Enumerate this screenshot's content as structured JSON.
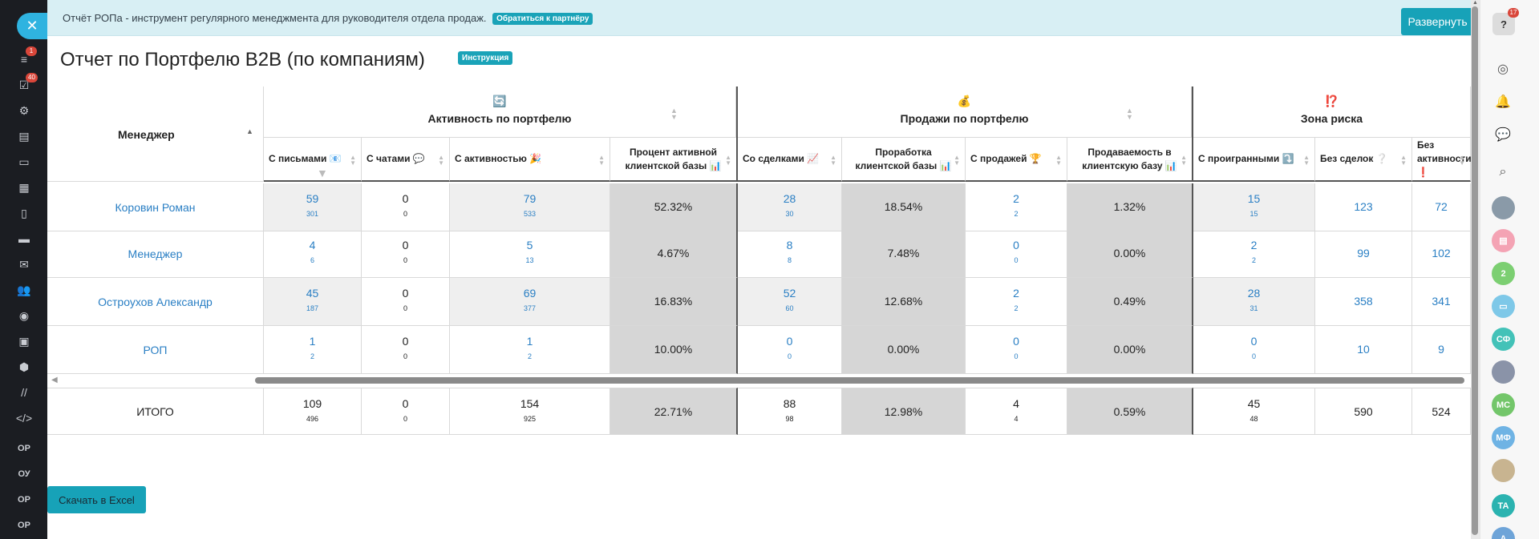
{
  "banner": {
    "text": "Отчёт РОПа - инструмент регулярного менеджмента для руководителя отдела продаж.",
    "partner_link": "Обратиться к партнёру",
    "expand_button": "Развернуть фильтр"
  },
  "page": {
    "title": "Отчет по Портфелю B2B (по компаниям)",
    "instruction_badge": "Инструкция",
    "excel_button": "Скачать в Excel"
  },
  "left_sidebar": {
    "badges": {
      "filter": "1",
      "tasks": "40"
    },
    "text_items": [
      "ОР",
      "ОУ",
      "ОР",
      "ОР"
    ]
  },
  "right_sidebar": {
    "help_badge": "17",
    "avatars": [
      "2",
      "СФ",
      "МС",
      "МФ",
      "ТА",
      "А"
    ]
  },
  "table": {
    "manager_header": "Менеджер",
    "groups": [
      {
        "icon": "🔄",
        "title": "Активность по портфелю"
      },
      {
        "icon": "💰",
        "title": "Продажи по портфелю"
      },
      {
        "icon": "⁉️",
        "title": "Зона риска"
      }
    ],
    "columns": [
      "С письмами 📧",
      "С чатами 💬",
      "С активностью 🎉",
      "Процент активной клиентской базы 📊",
      "Со сделками 📈",
      "Проработка клиентской базы 📊",
      "С продажей 🏆",
      "Продаваемость в клиентскую базу 📊",
      "С проигранными ⤵️",
      "Без сделок ❔",
      "Без активности ❗"
    ],
    "rows": [
      {
        "name": "Коровин Роман",
        "cells": [
          [
            "59",
            "301"
          ],
          [
            "0",
            "0"
          ],
          [
            "79",
            "533"
          ],
          [
            "52.32%"
          ],
          [
            "28",
            "30"
          ],
          [
            "18.54%"
          ],
          [
            "2",
            "2"
          ],
          [
            "1.32%"
          ],
          [
            "15",
            "15"
          ],
          [
            "123"
          ],
          [
            "72"
          ]
        ]
      },
      {
        "name": "Менеджер",
        "cells": [
          [
            "4",
            "6"
          ],
          [
            "0",
            "0"
          ],
          [
            "5",
            "13"
          ],
          [
            "4.67%"
          ],
          [
            "8",
            "8"
          ],
          [
            "7.48%"
          ],
          [
            "0",
            "0"
          ],
          [
            "0.00%"
          ],
          [
            "2",
            "2"
          ],
          [
            "99"
          ],
          [
            "102"
          ]
        ]
      },
      {
        "name": "Остроухов Александр",
        "cells": [
          [
            "45",
            "187"
          ],
          [
            "0",
            "0"
          ],
          [
            "69",
            "377"
          ],
          [
            "16.83%"
          ],
          [
            "52",
            "60"
          ],
          [
            "12.68%"
          ],
          [
            "2",
            "2"
          ],
          [
            "0.49%"
          ],
          [
            "28",
            "31"
          ],
          [
            "358"
          ],
          [
            "341"
          ]
        ]
      },
      {
        "name": "РОП",
        "cells": [
          [
            "1",
            "2"
          ],
          [
            "0",
            "0"
          ],
          [
            "1",
            "2"
          ],
          [
            "10.00%"
          ],
          [
            "0",
            "0"
          ],
          [
            "0.00%"
          ],
          [
            "0",
            "0"
          ],
          [
            "0.00%"
          ],
          [
            "0",
            "0"
          ],
          [
            "10"
          ],
          [
            "9"
          ]
        ]
      }
    ],
    "total": {
      "label": "ИТОГО",
      "cells": [
        [
          "109",
          "496"
        ],
        [
          "0",
          "0"
        ],
        [
          "154",
          "925"
        ],
        [
          "22.71%"
        ],
        [
          "88",
          "98"
        ],
        [
          "12.98%"
        ],
        [
          "4",
          "4"
        ],
        [
          "0.59%"
        ],
        [
          "45",
          "48"
        ],
        [
          "590"
        ],
        [
          "524"
        ]
      ]
    }
  }
}
